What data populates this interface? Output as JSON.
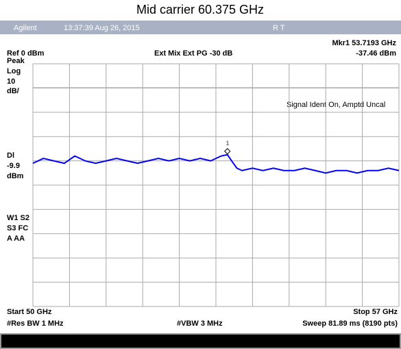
{
  "title": "Mid carrier 60.375 GHz",
  "header": {
    "brand": "Agilent",
    "time": "13:37:39  Aug 26, 2015",
    "status": "R   T"
  },
  "marker": {
    "label": "Mkr1  53.7193 GHz",
    "level": "-37.46 dBm",
    "number": "1"
  },
  "settings": {
    "ref": "Ref 0 dBm",
    "mix": "Ext Mix   Ext PG -30 dB",
    "note": "Signal Ident On, Amptd Uncal"
  },
  "left_labels": [
    "Peak",
    "Log",
    "10",
    "dB/",
    "Dl",
    "-9.9",
    "dBm",
    "W1  S2",
    "S3  FC",
    "A   AA"
  ],
  "footer": {
    "start": "Start 50 GHz",
    "stop": "Stop 57 GHz",
    "rbw": "#Res BW 1 MHz",
    "vbw": "#VBW 3 MHz",
    "sweep": "Sweep 81.89 ms (8190 pts)"
  },
  "trace": {
    "type": "line",
    "color": "#0000ff",
    "xlim": [
      50,
      57
    ],
    "ylim": [
      -100,
      0
    ],
    "marker_x": 53.7193,
    "marker_y": -37.46,
    "x": [
      50.0,
      50.2,
      50.4,
      50.6,
      50.8,
      51.0,
      51.2,
      51.4,
      51.6,
      51.8,
      52.0,
      52.2,
      52.4,
      52.6,
      52.8,
      53.0,
      53.2,
      53.4,
      53.6,
      53.7193,
      53.8,
      53.9,
      54.0,
      54.2,
      54.4,
      54.6,
      54.8,
      55.0,
      55.2,
      55.4,
      55.6,
      55.8,
      56.0,
      56.2,
      56.4,
      56.6,
      56.8,
      57.0
    ],
    "values": [
      -41,
      -39,
      -40,
      -41,
      -38,
      -40,
      -41,
      -40,
      -39,
      -40,
      -41,
      -40,
      -39,
      -40,
      -39,
      -40,
      -39,
      -40,
      -38,
      -37.46,
      -40,
      -43,
      -44,
      -43,
      -44,
      -43,
      -44,
      -44,
      -43,
      -44,
      -45,
      -44,
      -44,
      -45,
      -44,
      -44,
      -43,
      -44
    ]
  }
}
